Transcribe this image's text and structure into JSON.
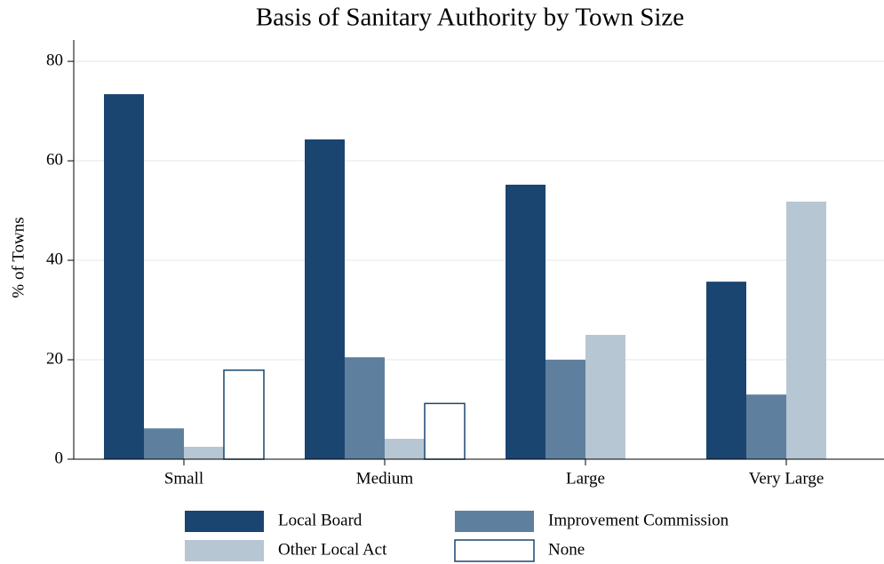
{
  "chart_data": {
    "type": "bar",
    "title": "Basis of Sanitary Authority by Town Size",
    "y_label": "% of Towns",
    "categories": [
      "Small",
      "Medium",
      "Large",
      "Very Large"
    ],
    "series": [
      {
        "name": "Local Board",
        "color": "#1a4570",
        "values": [
          73.4,
          64.3,
          55.2,
          35.7
        ]
      },
      {
        "name": "Improvement Commission",
        "color": "#5f7f9e",
        "values": [
          6.2,
          20.5,
          20.0,
          13.0
        ]
      },
      {
        "name": "Other Local Act",
        "color": "#b7c6d3",
        "values": [
          2.5,
          4.1,
          25.0,
          51.8
        ]
      },
      {
        "name": "None",
        "color": "#ffffff",
        "values": [
          17.9,
          11.2,
          0,
          0
        ]
      }
    ],
    "ylim": [
      0,
      84.3
    ],
    "yticks": [
      0,
      20,
      40,
      60,
      80
    ],
    "grid": true
  }
}
